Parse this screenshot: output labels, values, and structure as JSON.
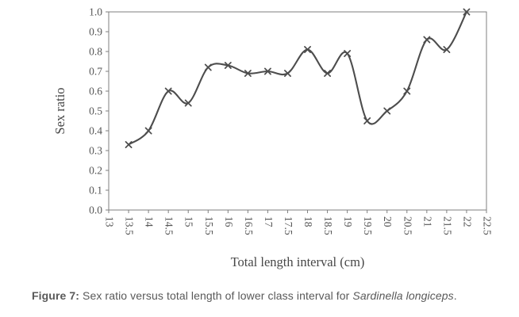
{
  "caption": {
    "label": "Figure 7:",
    "body": " Sex ratio versus total length of lower class interval for ",
    "species": "Sardinella longiceps",
    "period": "."
  },
  "chart_data": {
    "type": "line",
    "title": "",
    "xlabel": "Total length interval (cm)",
    "ylabel": "Sex ratio",
    "x": [
      13.5,
      14,
      14.5,
      15,
      15.5,
      16,
      16.5,
      17,
      17.5,
      18,
      18.5,
      19,
      19.5,
      20,
      20.5,
      21,
      21.5,
      22
    ],
    "y": [
      0.33,
      0.4,
      0.6,
      0.54,
      0.72,
      0.73,
      0.69,
      0.7,
      0.69,
      0.81,
      0.69,
      0.79,
      0.45,
      0.5,
      0.6,
      0.86,
      0.81,
      1.0
    ],
    "x_tick_values": [
      13,
      13.5,
      14,
      14.5,
      15,
      15.5,
      16,
      16.5,
      17,
      17.5,
      18,
      18.5,
      19,
      19.5,
      20,
      20.5,
      21,
      21.5,
      22,
      22.5
    ],
    "x_tick_labels": [
      "13",
      "13.5",
      "14",
      "14.5",
      "15",
      "15.5",
      "16",
      "16.5",
      "17",
      "17.5",
      "18",
      "18.5",
      "19",
      "19.5",
      "20",
      "20.5",
      "21",
      "21.5",
      "22",
      "22.5"
    ],
    "y_tick_values": [
      0,
      0.1,
      0.2,
      0.3,
      0.4,
      0.5,
      0.6,
      0.7,
      0.8,
      0.9,
      1.0
    ],
    "y_tick_labels": [
      "0.0",
      "0.1",
      "0.2",
      "0.3",
      "0.4",
      "0.5",
      "0.6",
      "0.7",
      "0.8",
      "0.9",
      "1.0"
    ],
    "xlim": [
      13,
      22.5
    ],
    "ylim": [
      0,
      1
    ],
    "grid": false,
    "legend": null,
    "smooth": true,
    "marker": "x",
    "line_color": "#4d4d4d",
    "marker_color": "#4d4d4d",
    "axis_color": "#7f7f7f"
  }
}
